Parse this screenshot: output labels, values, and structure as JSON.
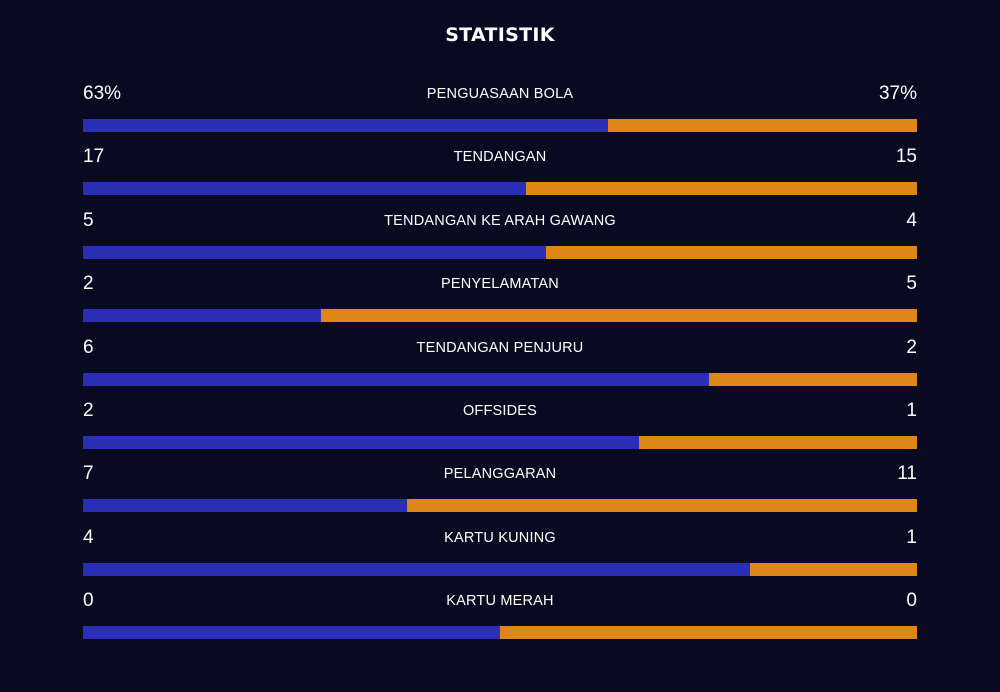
{
  "title": "STATISTIK",
  "colors": {
    "home": "#2b2fb8",
    "away": "#df8618",
    "background": "#090a22",
    "text": "#ffffff"
  },
  "chart_data": {
    "type": "bar",
    "orientation": "horizontal-stacked-comparison",
    "title": "STATISTIK",
    "stats": [
      {
        "label": "PENGUASAAN BOLA",
        "home": "63%",
        "away": "37%",
        "home_value": 63,
        "away_value": 37
      },
      {
        "label": "TENDANGAN",
        "home": "17",
        "away": "15",
        "home_value": 17,
        "away_value": 15
      },
      {
        "label": "TENDANGAN KE ARAH GAWANG",
        "home": "5",
        "away": "4",
        "home_value": 5,
        "away_value": 4
      },
      {
        "label": "PENYELAMATAN",
        "home": "2",
        "away": "5",
        "home_value": 2,
        "away_value": 5
      },
      {
        "label": "TENDANGAN PENJURU",
        "home": "6",
        "away": "2",
        "home_value": 6,
        "away_value": 2
      },
      {
        "label": "OFFSIDES",
        "home": "2",
        "away": "1",
        "home_value": 2,
        "away_value": 1
      },
      {
        "label": "PELANGGARAN",
        "home": "7",
        "away": "11",
        "home_value": 7,
        "away_value": 11
      },
      {
        "label": "KARTU KUNING",
        "home": "4",
        "away": "1",
        "home_value": 4,
        "away_value": 1
      },
      {
        "label": "KARTU MERAH",
        "home": "0",
        "away": "0",
        "home_value": 0,
        "away_value": 0
      }
    ]
  }
}
